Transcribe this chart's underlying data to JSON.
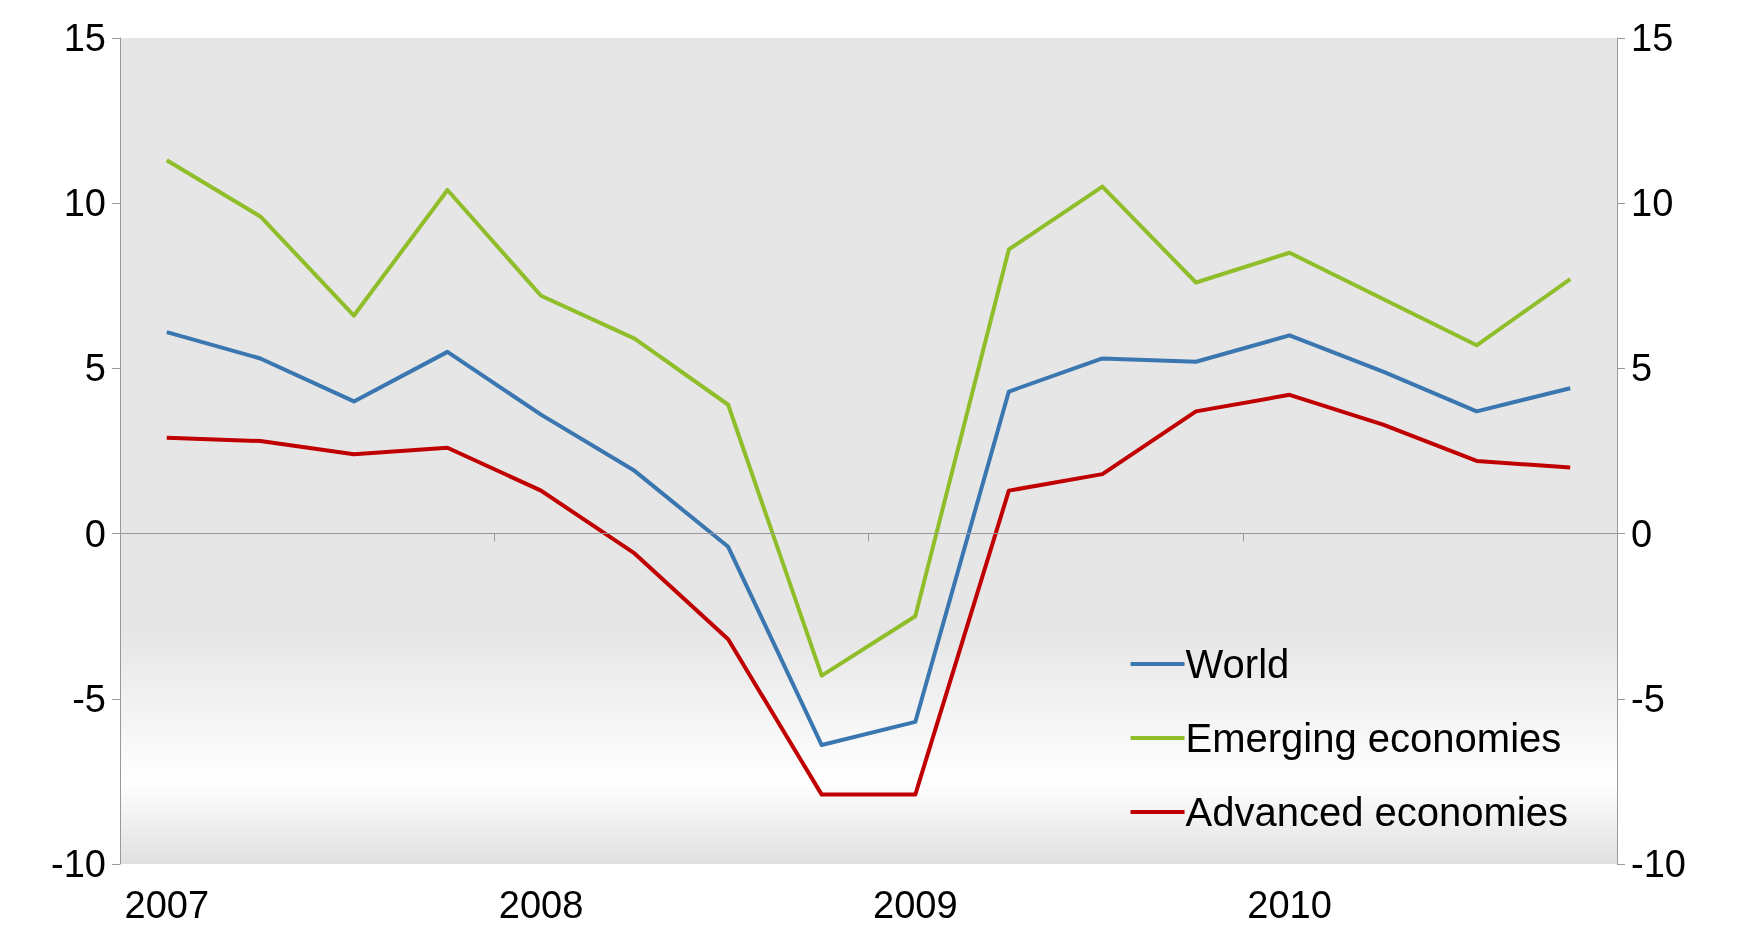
{
  "chart_data": {
    "type": "line",
    "categories": [
      "2007",
      null,
      null,
      null,
      "2008",
      null,
      null,
      null,
      "2009",
      null,
      null,
      null,
      "2010",
      null,
      null,
      null
    ],
    "series": [
      {
        "name": "World",
        "color": "#3a76b0",
        "values": [
          6.1,
          5.3,
          4.0,
          5.5,
          3.6,
          1.9,
          -0.4,
          -6.4,
          -5.7,
          4.3,
          5.3,
          5.2,
          6.0,
          4.9,
          3.7,
          4.4
        ]
      },
      {
        "name": "Emerging economies",
        "color": "#8fbe2a",
        "values": [
          11.3,
          9.6,
          6.6,
          10.4,
          7.2,
          5.9,
          3.9,
          -4.3,
          -2.5,
          8.6,
          10.5,
          7.6,
          8.5,
          7.1,
          5.7,
          7.7
        ]
      },
      {
        "name": "Advanced economies",
        "color": "#c00000",
        "values": [
          2.9,
          2.8,
          2.4,
          2.6,
          1.3,
          -0.6,
          -3.2,
          -7.9,
          -7.9,
          1.3,
          1.8,
          3.7,
          4.2,
          3.3,
          2.2,
          2.0
        ]
      }
    ],
    "ylim": [
      -10,
      15
    ],
    "yticks": [
      -10,
      -5,
      0,
      5,
      10,
      15
    ],
    "y2lim": [
      -10,
      15
    ],
    "y2ticks": [
      -10,
      -5,
      0,
      5,
      10,
      15
    ],
    "ref_lines": [
      {
        "axis": "y",
        "value": 0,
        "color": "#999999"
      }
    ],
    "legend": "bottom right",
    "marker": "none",
    "line_style": "solid"
  }
}
